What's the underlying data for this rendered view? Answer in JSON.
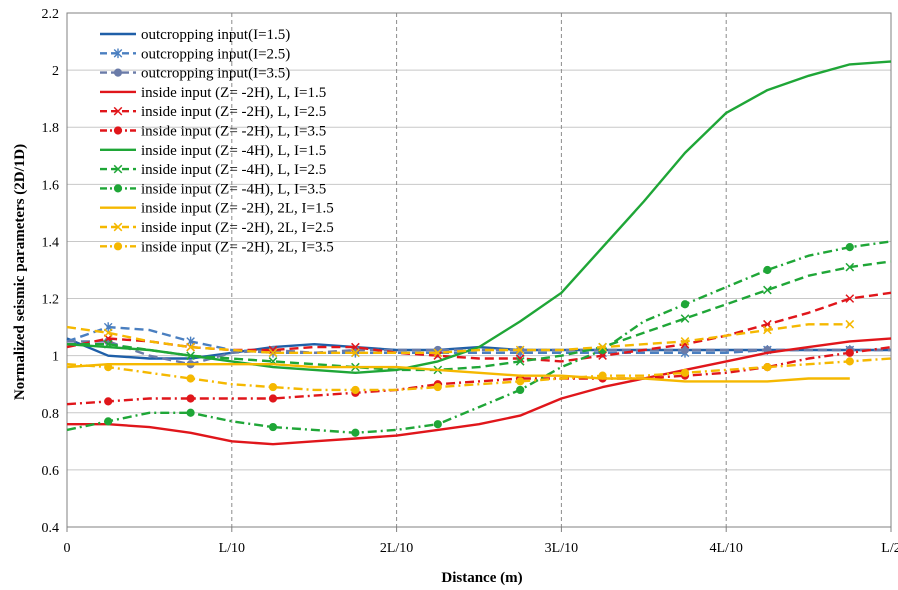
{
  "chart_data": {
    "type": "line",
    "title": "",
    "xlabel": "Distance (m)",
    "ylabel": "Normalized seismic parameters (2D/1D)",
    "xlim": [
      0,
      0.5
    ],
    "ylim": [
      0.4,
      2.2
    ],
    "grid": true,
    "legend_position": "top-left",
    "x_ticks": [
      {
        "value": 0,
        "label": "0"
      },
      {
        "value": 0.1,
        "label": "L/10"
      },
      {
        "value": 0.2,
        "label": "2L/10"
      },
      {
        "value": 0.3,
        "label": "3L/10"
      },
      {
        "value": 0.4,
        "label": "4L/10"
      },
      {
        "value": 0.5,
        "label": "L/2"
      }
    ],
    "y_ticks": [
      {
        "value": 0.4,
        "label": "0.4"
      },
      {
        "value": 0.6,
        "label": "0.6"
      },
      {
        "value": 0.8,
        "label": "0.8"
      },
      {
        "value": 1.0,
        "label": "1"
      },
      {
        "value": 1.2,
        "label": "1.2"
      },
      {
        "value": 1.4,
        "label": "1.4"
      },
      {
        "value": 1.6,
        "label": "1.6"
      },
      {
        "value": 1.8,
        "label": "1.8"
      },
      {
        "value": 2.0,
        "label": "2"
      },
      {
        "value": 2.2,
        "label": "2.2"
      }
    ],
    "x": [
      0,
      0.025,
      0.05,
      0.075,
      0.1,
      0.125,
      0.15,
      0.175,
      0.2,
      0.225,
      0.25,
      0.275,
      0.3,
      0.325,
      0.35,
      0.375,
      0.4,
      0.425,
      0.45,
      0.475,
      0.5
    ],
    "series": [
      {
        "name": "outcropping input(I=1.5)",
        "color": "#1f5fa8",
        "dash": "solid",
        "marker": "none",
        "values": [
          1.06,
          1.0,
          0.99,
          0.99,
          1.01,
          1.03,
          1.04,
          1.03,
          1.02,
          1.02,
          1.03,
          1.02,
          1.02,
          1.02,
          1.02,
          1.02,
          1.02,
          1.02,
          1.02,
          1.02,
          1.02
        ]
      },
      {
        "name": "outcropping input(I=2.5)",
        "color": "#4a7fc0",
        "dash": "dash",
        "marker": "star",
        "values": [
          1.05,
          1.1,
          1.09,
          1.05,
          1.02,
          1.01,
          1.01,
          1.01,
          1.01,
          1.01,
          1.01,
          1.01,
          1.01,
          1.01,
          1.01,
          1.01,
          1.01,
          1.02,
          1.02,
          1.02,
          1.02
        ]
      },
      {
        "name": "outcropping input(I=3.5)",
        "color": "#6a7ba8",
        "dash": "dash",
        "marker": "circle",
        "values": [
          1.05,
          1.05,
          1.0,
          0.97,
          1.01,
          1.02,
          1.01,
          1.02,
          1.02,
          1.02,
          1.02,
          1.02,
          1.02,
          1.02,
          1.02,
          1.02,
          1.02,
          1.02,
          1.02,
          1.02,
          1.02
        ]
      },
      {
        "name": "inside input (Z= -2H), L, I=1.5",
        "color": "#e0161b",
        "dash": "solid",
        "marker": "none",
        "values": [
          0.76,
          0.76,
          0.75,
          0.73,
          0.7,
          0.69,
          0.7,
          0.71,
          0.72,
          0.74,
          0.76,
          0.79,
          0.85,
          0.89,
          0.92,
          0.95,
          0.98,
          1.01,
          1.03,
          1.05,
          1.06
        ]
      },
      {
        "name": "inside input (Z= -2H), L, I=2.5",
        "color": "#e0161b",
        "dash": "dash",
        "marker": "x",
        "values": [
          1.03,
          1.06,
          1.05,
          1.03,
          1.02,
          1.02,
          1.03,
          1.03,
          1.01,
          1.0,
          0.99,
          0.99,
          0.98,
          1.0,
          1.02,
          1.04,
          1.07,
          1.11,
          1.15,
          1.2,
          1.22
        ]
      },
      {
        "name": "inside input (Z= -2H), L, I=3.5",
        "color": "#e0161b",
        "dash": "dashdot",
        "marker": "circle",
        "values": [
          0.83,
          0.84,
          0.85,
          0.85,
          0.85,
          0.85,
          0.86,
          0.87,
          0.88,
          0.9,
          0.91,
          0.92,
          0.92,
          0.92,
          0.92,
          0.93,
          0.94,
          0.96,
          0.99,
          1.01,
          1.03
        ]
      },
      {
        "name": "inside input (Z= -4H), L, I=1.5",
        "color": "#1fa637",
        "dash": "solid",
        "marker": "none",
        "values": [
          1.04,
          1.03,
          1.02,
          1.0,
          0.98,
          0.96,
          0.95,
          0.94,
          0.95,
          0.98,
          1.03,
          1.12,
          1.22,
          1.38,
          1.54,
          1.71,
          1.85,
          1.93,
          1.98,
          2.02,
          2.03
        ]
      },
      {
        "name": "inside input (Z= -4H), L, I=2.5",
        "color": "#1fa637",
        "dash": "dash",
        "marker": "x",
        "values": [
          1.04,
          1.04,
          1.02,
          1.0,
          0.99,
          0.98,
          0.97,
          0.96,
          0.95,
          0.95,
          0.96,
          0.98,
          1.0,
          1.03,
          1.08,
          1.13,
          1.18,
          1.23,
          1.28,
          1.31,
          1.33
        ]
      },
      {
        "name": "inside input (Z= -4H), L, I=3.5",
        "color": "#1fa637",
        "dash": "dashdot",
        "marker": "circle",
        "values": [
          0.74,
          0.77,
          0.8,
          0.8,
          0.77,
          0.75,
          0.74,
          0.73,
          0.74,
          0.76,
          0.82,
          0.88,
          0.96,
          1.02,
          1.12,
          1.18,
          1.24,
          1.3,
          1.35,
          1.38,
          1.4
        ]
      },
      {
        "name": "inside input (Z= -2H), 2L, I=1.5",
        "color": "#f5b800",
        "dash": "solid",
        "marker": "none",
        "values": [
          0.96,
          0.97,
          0.97,
          0.97,
          0.97,
          0.97,
          0.96,
          0.96,
          0.96,
          0.95,
          0.94,
          0.93,
          0.93,
          0.92,
          0.92,
          0.91,
          0.91,
          0.91,
          0.92,
          0.92,
          null
        ]
      },
      {
        "name": "inside input (Z= -2H), 2L, I=2.5",
        "color": "#f5b800",
        "dash": "dash",
        "marker": "x",
        "values": [
          1.1,
          1.08,
          1.05,
          1.03,
          1.02,
          1.01,
          1.01,
          1.01,
          1.01,
          1.01,
          1.02,
          1.02,
          1.02,
          1.03,
          1.04,
          1.05,
          1.07,
          1.09,
          1.11,
          1.11,
          null
        ]
      },
      {
        "name": "inside input (Z= -2H), 2L, I=3.5",
        "color": "#f5b800",
        "dash": "dashdot",
        "marker": "circle",
        "values": [
          0.97,
          0.96,
          0.94,
          0.92,
          0.9,
          0.89,
          0.88,
          0.88,
          0.88,
          0.89,
          0.9,
          0.91,
          0.92,
          0.93,
          0.93,
          0.94,
          0.95,
          0.96,
          0.97,
          0.98,
          0.99
        ]
      }
    ]
  }
}
